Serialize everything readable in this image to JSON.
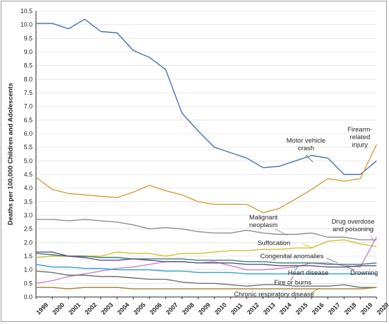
{
  "chart_data": {
    "type": "line",
    "title": "",
    "xlabel": "",
    "ylabel": "Deaths per 100,000 Children and Adolescents",
    "ylim": [
      0,
      10.5
    ],
    "yticks": [
      "0.0",
      "0.5",
      "1.0",
      "1.5",
      "2.0",
      "2.5",
      "3.0",
      "3.5",
      "4.0",
      "4.5",
      "5.0",
      "5.5",
      "6.0",
      "6.5",
      "7.0",
      "7.5",
      "8.0",
      "8.5",
      "9.0",
      "9.5",
      "10.0",
      "10.5"
    ],
    "x": [
      1999,
      2000,
      2001,
      2002,
      2003,
      2004,
      2005,
      2006,
      2007,
      2008,
      2009,
      2010,
      2011,
      2012,
      2013,
      2014,
      2015,
      2016,
      2017,
      2018,
      2019,
      2020
    ],
    "grid": true,
    "series": [
      {
        "name": "Motor vehicle crash",
        "color": "#4a6fae",
        "values": [
          10.05,
          10.05,
          9.85,
          10.2,
          9.75,
          9.7,
          9.05,
          8.8,
          8.35,
          6.75,
          6.1,
          5.5,
          5.3,
          5.1,
          4.75,
          4.8,
          5.0,
          5.2,
          5.1,
          4.5,
          4.5,
          5.0
        ]
      },
      {
        "name": "Firearm-related injury",
        "color": "#d99a3c",
        "values": [
          4.4,
          3.95,
          3.8,
          3.75,
          3.7,
          3.65,
          3.85,
          4.1,
          3.9,
          3.75,
          3.5,
          3.4,
          3.4,
          3.4,
          3.1,
          3.25,
          3.6,
          3.95,
          4.35,
          4.25,
          4.35,
          5.6
        ]
      },
      {
        "name": "Malignant neoplasm",
        "color": "#8c8c8c",
        "values": [
          2.85,
          2.85,
          2.8,
          2.85,
          2.8,
          2.75,
          2.65,
          2.5,
          2.55,
          2.5,
          2.4,
          2.35,
          2.35,
          2.45,
          2.35,
          2.3,
          2.3,
          2.35,
          2.2,
          2.2,
          2.1,
          2.1
        ]
      },
      {
        "name": "Suffocation",
        "color": "#c9c42a",
        "values": [
          1.45,
          1.5,
          1.5,
          1.5,
          1.5,
          1.65,
          1.6,
          1.6,
          1.5,
          1.6,
          1.6,
          1.65,
          1.7,
          1.7,
          1.75,
          1.75,
          1.8,
          1.8,
          2.05,
          2.1,
          1.95,
          1.85
        ]
      },
      {
        "name": "Drug overdose and poisoning",
        "color": "#c77fd1",
        "values": [
          0.5,
          0.6,
          0.75,
          0.85,
          0.95,
          1.05,
          1.1,
          1.2,
          1.3,
          1.3,
          1.25,
          1.3,
          1.15,
          1.0,
          1.0,
          1.05,
          1.1,
          1.25,
          1.25,
          1.15,
          1.1,
          2.2
        ]
      },
      {
        "name": "Congenital anomalies",
        "color": "#3a7d6e",
        "values": [
          1.6,
          1.55,
          1.5,
          1.5,
          1.45,
          1.45,
          1.4,
          1.4,
          1.4,
          1.4,
          1.35,
          1.35,
          1.35,
          1.3,
          1.3,
          1.25,
          1.25,
          1.25,
          1.2,
          1.2,
          1.2,
          1.25
        ]
      },
      {
        "name": "Heart disease",
        "color": "#2a9fd0",
        "values": [
          1.2,
          1.1,
          1.1,
          1.05,
          1.05,
          1.0,
          1.0,
          1.0,
          0.95,
          0.95,
          0.9,
          0.9,
          0.9,
          0.85,
          0.85,
          0.85,
          0.85,
          0.85,
          0.85,
          0.85,
          0.85,
          0.85
        ]
      },
      {
        "name": "Drowning",
        "color": "#5a4a8a",
        "values": [
          1.65,
          1.65,
          1.5,
          1.45,
          1.35,
          1.35,
          1.4,
          1.35,
          1.3,
          1.3,
          1.25,
          1.25,
          1.25,
          1.2,
          1.2,
          1.15,
          1.15,
          1.15,
          1.1,
          1.1,
          1.15,
          1.15
        ]
      },
      {
        "name": "Fire or burns",
        "color": "#6e6e6e",
        "values": [
          0.95,
          0.9,
          0.8,
          0.8,
          0.75,
          0.75,
          0.7,
          0.65,
          0.65,
          0.55,
          0.5,
          0.5,
          0.45,
          0.4,
          0.45,
          0.45,
          0.4,
          0.4,
          0.4,
          0.45,
          0.35,
          0.35
        ]
      },
      {
        "name": "Chronic respiratory disease",
        "color": "#a47a2a",
        "values": [
          0.35,
          0.35,
          0.3,
          0.35,
          0.35,
          0.35,
          0.3,
          0.3,
          0.3,
          0.3,
          0.3,
          0.3,
          0.3,
          0.3,
          0.3,
          0.3,
          0.3,
          0.3,
          0.3,
          0.3,
          0.3,
          0.35
        ]
      }
    ],
    "annotations": [
      {
        "series": "Motor vehicle crash",
        "lines": [
          "Motor vehicle",
          "crash"
        ]
      },
      {
        "series": "Firearm-related injury",
        "lines": [
          "Firearm-",
          "related",
          "injury"
        ]
      },
      {
        "series": "Malignant neoplasm",
        "lines": [
          "Malignant",
          "neoplasm"
        ]
      },
      {
        "series": "Drug overdose and poisoning",
        "lines": [
          "Drug overdose",
          "and poisoning"
        ]
      },
      {
        "series": "Suffocation",
        "lines": [
          "Suffocation"
        ]
      },
      {
        "series": "Congenital anomalies",
        "lines": [
          "Congenital anomalies"
        ]
      },
      {
        "series": "Heart disease",
        "lines": [
          "Heart disease"
        ]
      },
      {
        "series": "Drowning",
        "lines": [
          "Drowning"
        ]
      },
      {
        "series": "Fire or burns",
        "lines": [
          "Fire or burns"
        ]
      },
      {
        "series": "Chronic respiratory disease",
        "lines": [
          "Chronic respiratory disease"
        ]
      }
    ]
  }
}
